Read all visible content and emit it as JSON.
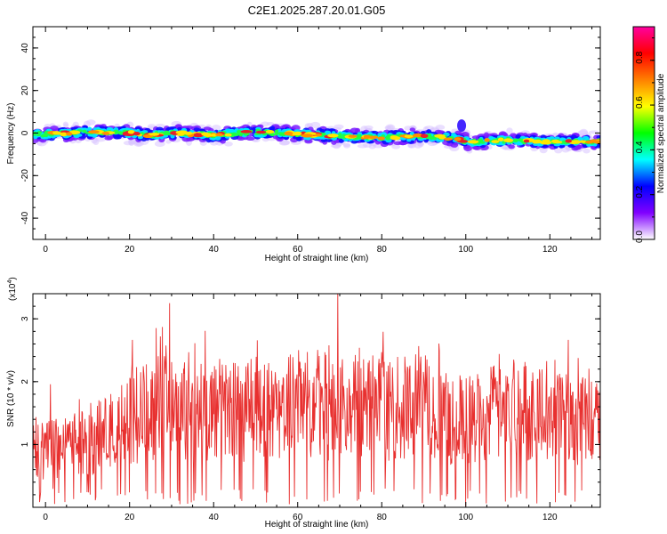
{
  "title": "C2E1.2025.287.20.01.G05",
  "chart_data": [
    {
      "type": "heatmap",
      "panel": "spectrogram",
      "xlabel": "Height of straight line (km)",
      "ylabel": "Frequency (Hz)",
      "xlim": [
        -3,
        132
      ],
      "ylim": [
        -50,
        50
      ],
      "xticks": [
        "0",
        "20",
        "40",
        "60",
        "80",
        "100",
        "120"
      ],
      "yticks": [
        "-40",
        "-20",
        "0",
        "20",
        "40"
      ],
      "ytick_values": [
        -40,
        -20,
        0,
        20,
        40
      ],
      "band_center_freq": [
        [
          -3,
          -0.5
        ],
        [
          0,
          -0.5
        ],
        [
          10,
          0.5
        ],
        [
          20,
          0.0
        ],
        [
          25,
          -1.0
        ],
        [
          30,
          0.0
        ],
        [
          40,
          -1.0
        ],
        [
          50,
          0.5
        ],
        [
          60,
          -0.5
        ],
        [
          70,
          -1.5
        ],
        [
          80,
          -2.0
        ],
        [
          90,
          -1.5
        ],
        [
          98,
          -2.5
        ],
        [
          100,
          -4.0
        ],
        [
          110,
          -3.5
        ],
        [
          120,
          -4.0
        ],
        [
          132,
          -4.0
        ]
      ],
      "band_halfwidth_hz": 2.5,
      "peak_color": "#e8202a",
      "colorbar": {
        "label": "Normalized spectral amplitude",
        "range": [
          0.0,
          0.95
        ],
        "ticks": [
          "0.0",
          "0.2",
          "0.4",
          "0.6",
          "0.8"
        ],
        "tick_values": [
          0.0,
          0.2,
          0.4,
          0.6,
          0.8
        ],
        "colors": [
          "#ffffff",
          "#8000ff",
          "#0000ff",
          "#00ffff",
          "#00ff00",
          "#ffff00",
          "#ff8000",
          "#ff0000",
          "#ff00a0"
        ]
      }
    },
    {
      "type": "line",
      "panel": "snr",
      "xlabel": "Height of straight line (km)",
      "ylabel": "SNR (10 * v/v)",
      "multiplier": "(x10",
      "multiplier_exp": "4",
      "multiplier_close": ")",
      "xlim": [
        -3,
        132
      ],
      "ylim": [
        0,
        3.4
      ],
      "xticks": [
        "0",
        "20",
        "40",
        "60",
        "80",
        "100",
        "120"
      ],
      "yticks": [
        "1",
        "2",
        "3"
      ],
      "ytick_values": [
        1,
        2,
        3
      ],
      "line_color": "#e8302f",
      "envelope": [
        [
          -3,
          1.0
        ],
        [
          0,
          0.9
        ],
        [
          5,
          1.0
        ],
        [
          10,
          1.1
        ],
        [
          15,
          1.2
        ],
        [
          20,
          1.4
        ],
        [
          25,
          1.6
        ],
        [
          30,
          1.8
        ],
        [
          35,
          1.5
        ],
        [
          40,
          1.6
        ],
        [
          45,
          1.6
        ],
        [
          50,
          1.6
        ],
        [
          55,
          1.5
        ],
        [
          60,
          1.7
        ],
        [
          65,
          1.7
        ],
        [
          70,
          1.6
        ],
        [
          75,
          1.7
        ],
        [
          80,
          1.6
        ],
        [
          85,
          1.6
        ],
        [
          90,
          1.7
        ],
        [
          95,
          1.5
        ],
        [
          100,
          1.4
        ],
        [
          105,
          1.5
        ],
        [
          110,
          1.6
        ],
        [
          115,
          1.6
        ],
        [
          120,
          1.6
        ],
        [
          125,
          1.5
        ],
        [
          132,
          1.5
        ]
      ],
      "peaks": [
        [
          29.5,
          3.25
        ],
        [
          69.5,
          3.4
        ],
        [
          100.0,
          0.02
        ],
        [
          58.0,
          0.05
        ],
        [
          32.0,
          0.05
        ]
      ]
    }
  ]
}
